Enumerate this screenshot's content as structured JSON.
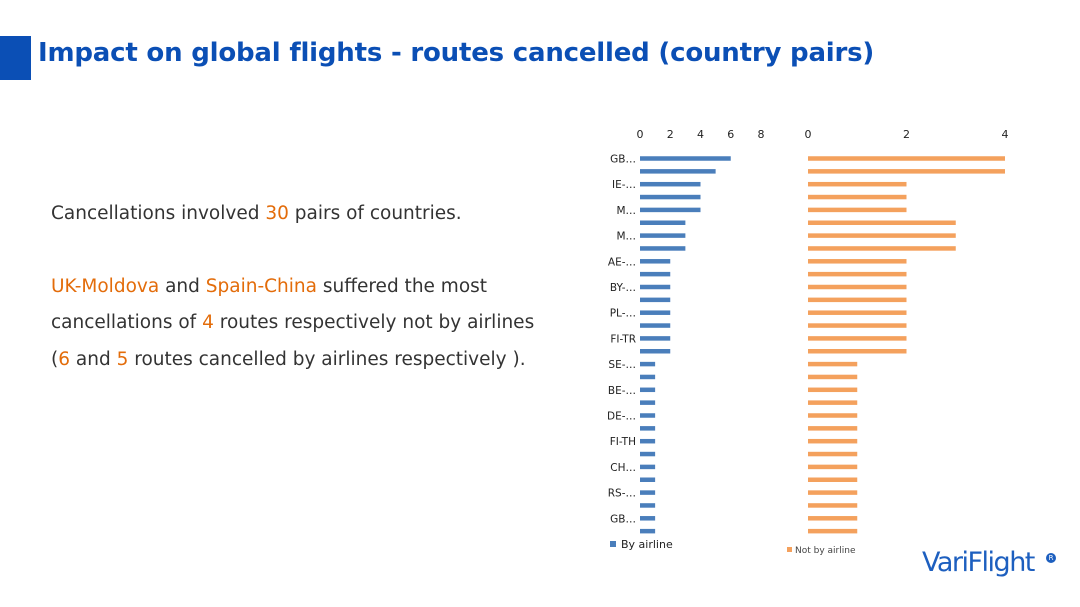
{
  "slide": {
    "title": "Impact on global flights - routes cancelled (country pairs)",
    "colors": {
      "title": "#0b4fb5",
      "highlight": "#e36c0a",
      "by_airline": "#4a7ebb",
      "not_by_airline": "#f4a15d"
    }
  },
  "body": {
    "p1_a": "Cancellations involved ",
    "p1_num": "30",
    "p1_b": " pairs of countries.",
    "p2_h1": "UK-Moldova",
    "p2_a": " and ",
    "p2_h2": "Spain-China",
    "p2_b": " suffered the most cancellations of ",
    "p2_num1": "4",
    "p2_c": " routes respectively not by airlines (",
    "p2_num2": "6",
    "p2_d": " and ",
    "p2_num3": "5",
    "p2_e": " routes cancelled by airlines respectively )."
  },
  "logo": {
    "text": "VariFlight",
    "badge": "R"
  },
  "chart_data": [
    {
      "type": "bar",
      "orientation": "horizontal",
      "series": [
        {
          "name": "By airline",
          "values": [
            6,
            5,
            4,
            4,
            4,
            3,
            3,
            3,
            2,
            2,
            2,
            2,
            2,
            2,
            2,
            2,
            1,
            1,
            1,
            1,
            1,
            1,
            1,
            1,
            1,
            1,
            1,
            1,
            1,
            1
          ]
        }
      ],
      "category_count": 30,
      "visible_category_labels": [
        "GB…",
        "IE-…",
        "M…",
        "M…",
        "AE-…",
        "BY-…",
        "PL-…",
        "FI-TR",
        "SE-…",
        "BE-…",
        "DE-…",
        "FI-TH",
        "CH…",
        "RS-…",
        "GB…"
      ],
      "xticks": [
        "0",
        "2",
        "4",
        "6",
        "8"
      ],
      "xlim": [
        0,
        8
      ],
      "legend": "bottom"
    },
    {
      "type": "bar",
      "orientation": "horizontal",
      "series": [
        {
          "name": "Not by airline",
          "values": [
            4,
            4,
            2,
            2,
            2,
            3,
            3,
            3,
            2,
            2,
            2,
            2,
            2,
            2,
            2,
            2,
            1,
            1,
            1,
            1,
            1,
            1,
            1,
            1,
            1,
            1,
            1,
            1,
            1,
            1
          ]
        }
      ],
      "category_count": 30,
      "xticks": [
        "0",
        "2",
        "4"
      ],
      "xlim": [
        0,
        4
      ],
      "legend": "bottom"
    }
  ]
}
